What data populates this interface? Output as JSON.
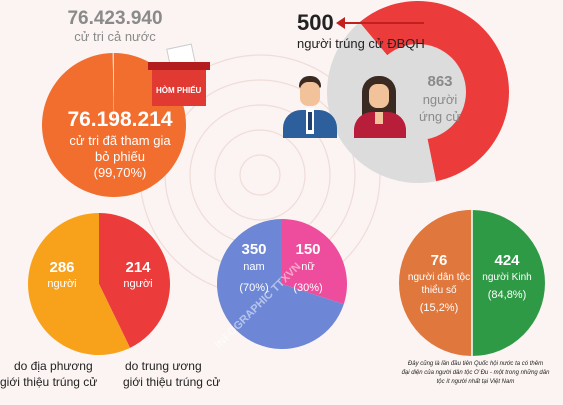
{
  "colors": {
    "orange": "#f26e2f",
    "red": "#ec3b3b",
    "gray_pie": "#dcdcdc",
    "yellow_orange": "#f8a21b",
    "blue": "#6d87d6",
    "pink": "#ed4d9c",
    "brown_orange": "#e0773c",
    "green": "#2f9a46",
    "background": "#fbf4f2"
  },
  "voters": {
    "total_value": "76.423.940",
    "total_label": "cử tri cả nước",
    "participated_value": "76.198.214",
    "participated_line1": "cử tri đã tham gia",
    "participated_line2": "bỏ phiếu",
    "participated_pct": "(99,70%)",
    "ballot_box_label": "HÒM PHIẾU"
  },
  "elected": {
    "elected_value": "500",
    "elected_label": "người trúng cử ĐBQH",
    "candidates_value": "863",
    "candidates_line1": "người",
    "candidates_line2": "ứng cử"
  },
  "origin": {
    "local_value": "286",
    "local_unit": "người",
    "local_caption_line1": "do địa phương",
    "local_caption_line2": "giới thiệu trúng cử",
    "central_value": "214",
    "central_unit": "người",
    "central_caption_line1": "do trung ương",
    "central_caption_line2": "giới thiệu trúng cử"
  },
  "gender": {
    "male_value": "350",
    "male_label": "nam",
    "male_pct": "(70%)",
    "female_value": "150",
    "female_label": "nữ",
    "female_pct": "(30%)"
  },
  "ethnicity": {
    "minority_value": "76",
    "minority_line1": "người dân tộc",
    "minority_line2": "thiểu số",
    "minority_pct": "(15,2%)",
    "kinh_value": "424",
    "kinh_label": "người Kinh",
    "kinh_pct": "(84,8%)",
    "note_line1": "Đây cũng là lần đầu tiên Quốc hội nước ta có thêm",
    "note_line2": "đại diện của người dân tộc Ơ Đu - một trong những dân",
    "note_line3": "tộc ít người nhất tại Việt Nam"
  },
  "watermark": "INFOGRAPHIC TTXVN",
  "chart_data": [
    {
      "type": "pie",
      "categories": [
        "cử tri đã tham gia bỏ phiếu",
        "cử tri cả nước"
      ],
      "values": [
        76198214,
        76423940
      ]
    },
    {
      "type": "pie",
      "categories": [
        "người trúng cử ĐBQH",
        "người ứng cử"
      ],
      "values": [
        500,
        863
      ]
    },
    {
      "type": "pie",
      "categories": [
        "do địa phương giới thiệu trúng cử",
        "do trung ương giới thiệu trúng cử"
      ],
      "values": [
        286,
        214
      ]
    },
    {
      "type": "pie",
      "categories": [
        "nam",
        "nữ"
      ],
      "values": [
        350,
        150
      ],
      "percent": [
        70,
        30
      ]
    },
    {
      "type": "pie",
      "categories": [
        "người dân tộc thiểu số",
        "người Kinh"
      ],
      "values": [
        76,
        424
      ],
      "percent": [
        15.2,
        84.8
      ]
    }
  ]
}
